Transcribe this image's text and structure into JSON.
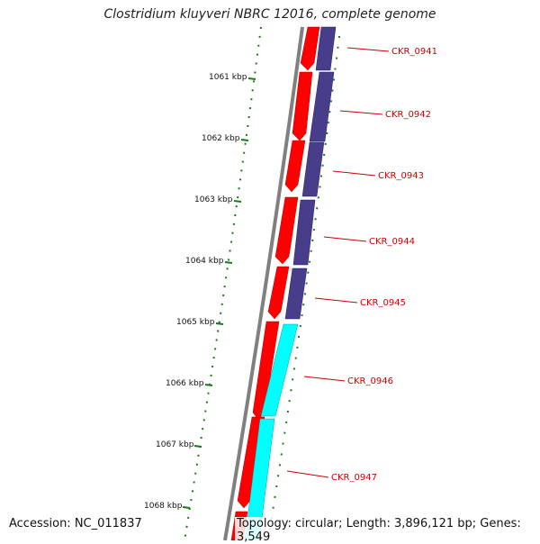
{
  "title": "Clostridium kluyveri NBRC 12016, complete genome",
  "footer": {
    "accession": "Accession: NC_011837",
    "summary": "Topology: circular; Length: 3,896,121 bp; Genes: 3,549"
  },
  "kbp_labels": [
    "1061 kbp",
    "1062 kbp",
    "1063 kbp",
    "1064 kbp",
    "1065 kbp",
    "1066 kbp",
    "1067 kbp",
    "1068 kbp"
  ],
  "genes": [
    "CKR_0941",
    "CKR_0942",
    "CKR_0943",
    "CKR_0944",
    "CKR_0945",
    "CKR_0946",
    "CKR_0947"
  ],
  "colors": {
    "backbone": "#808080",
    "forward_cds": "#ff0000",
    "reverse_cds_a": "#483d8b",
    "reverse_cds_b": "#00ffff",
    "ticks": "#1a7a1a",
    "gene_label": "#cc0000"
  }
}
